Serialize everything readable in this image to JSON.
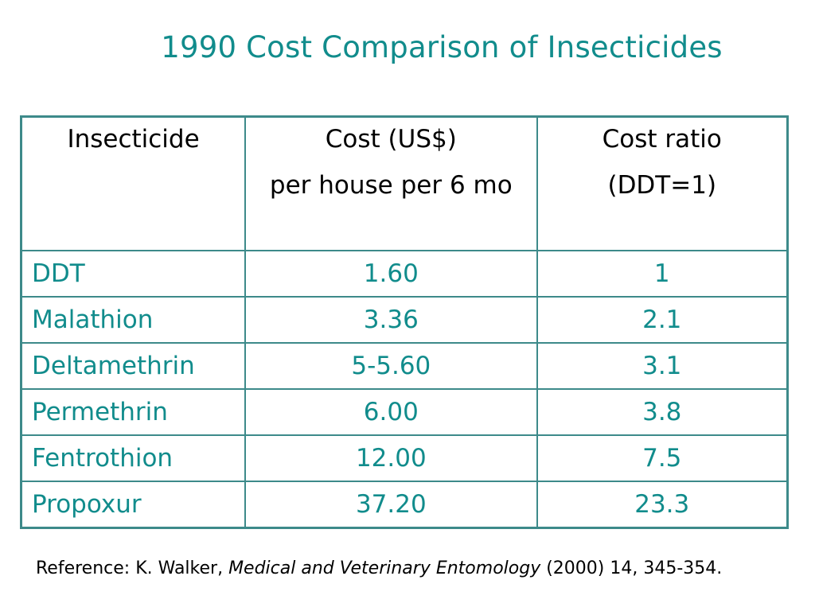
{
  "title": "1990 Cost Comparison of Insecticides",
  "table": {
    "headers": [
      {
        "line1": "Insecticide",
        "line2": ""
      },
      {
        "line1": "Cost (US$)",
        "line2": "per house per 6 mo"
      },
      {
        "line1": "Cost ratio",
        "line2": "(DDT=1)"
      }
    ],
    "rows": [
      {
        "insecticide": "DDT",
        "cost": "1.60",
        "ratio": "1"
      },
      {
        "insecticide": "Malathion",
        "cost": "3.36",
        "ratio": "2.1"
      },
      {
        "insecticide": "Deltamethrin",
        "cost": "5-5.60",
        "ratio": "3.1"
      },
      {
        "insecticide": "Permethrin",
        "cost": "6.00",
        "ratio": "3.8"
      },
      {
        "insecticide": "Fentrothion",
        "cost": "12.00",
        "ratio": "7.5"
      },
      {
        "insecticide": "Propoxur",
        "cost": "37.20",
        "ratio": "23.3"
      }
    ]
  },
  "reference": {
    "prefix": "Reference:  K. Walker, ",
    "journal": "Medical and Veterinary Entomology",
    "suffix": " (2000) 14, 345-354."
  },
  "colors": {
    "accent": "#118c8c",
    "border": "#3d8a8a"
  }
}
